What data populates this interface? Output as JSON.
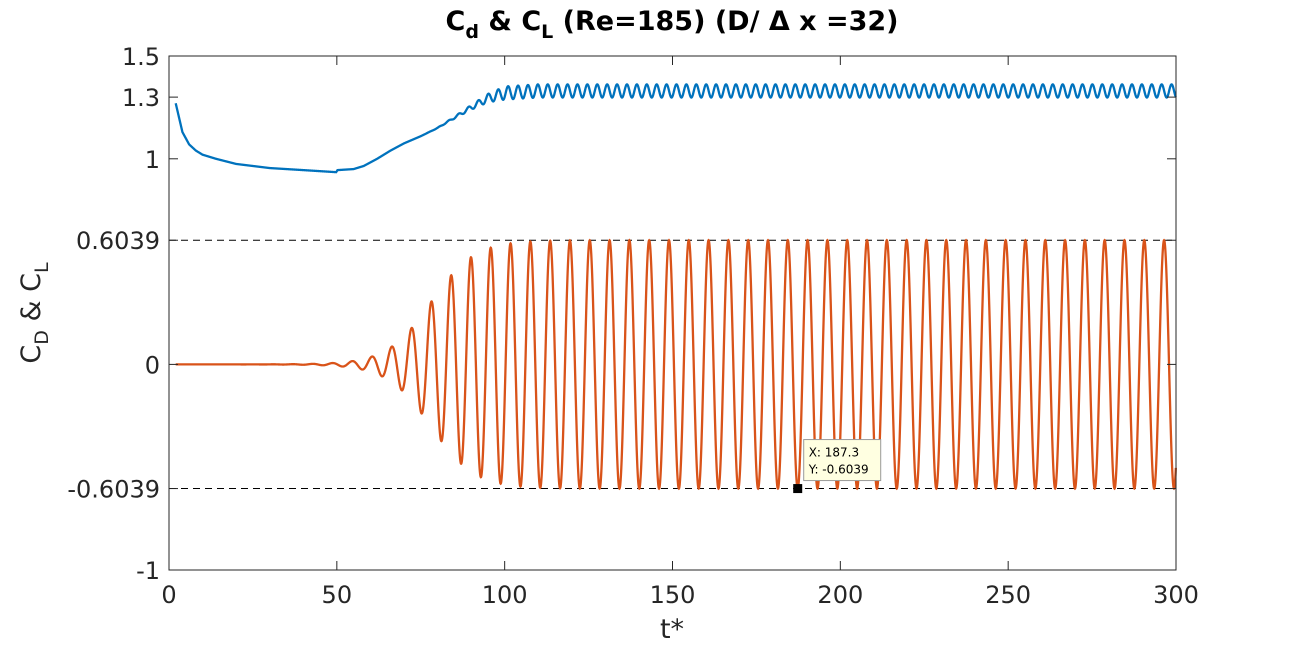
{
  "colors": {
    "cd_line": "#0072BD",
    "cl_line": "#D95319",
    "axis": "#262626",
    "dashed": "#000000",
    "tooltip_bg": "#FFFFE1",
    "tooltip_border": "#9A9A9A"
  },
  "chart_data": {
    "type": "line",
    "title": {
      "c1_main": "C",
      "c1_sub": "d",
      "amp": " & ",
      "c2_main": "C",
      "c2_sub": "L",
      "rest": " (Re=185) (D/ Δ x =32)"
    },
    "xlabel": "t*",
    "ylabel": {
      "c1_main": "C",
      "c1_sub": "D",
      "amp": " & ",
      "c2_main": "C",
      "c2_sub": "L"
    },
    "xlim": [
      0,
      300
    ],
    "ylim": [
      -1,
      1.5
    ],
    "xticks": [
      0,
      50,
      100,
      150,
      200,
      250,
      300
    ],
    "xtick_labels": [
      "0",
      "50",
      "100",
      "150",
      "200",
      "250",
      "300"
    ],
    "yticks": [
      -1,
      -0.6039,
      0,
      0.6039,
      1,
      1.3,
      1.5
    ],
    "ytick_labels": [
      "-1",
      "-0.6039",
      "0",
      "0.6039",
      "1",
      "1.3",
      "1.5"
    ],
    "reference_lines": [
      0.6039,
      -0.6039
    ],
    "grid": false,
    "series": [
      {
        "key": "cd",
        "description_points": [
          [
            2,
            1.27
          ],
          [
            4,
            1.13
          ],
          [
            6,
            1.07
          ],
          [
            8,
            1.04
          ],
          [
            10,
            1.02
          ],
          [
            14,
            1.0
          ],
          [
            20,
            0.975
          ],
          [
            30,
            0.955
          ],
          [
            40,
            0.945
          ],
          [
            49.8,
            0.935
          ],
          [
            50.2,
            0.945
          ],
          [
            55,
            0.95
          ],
          [
            58,
            0.965
          ],
          [
            62,
            1.0
          ],
          [
            66,
            1.04
          ],
          [
            70,
            1.075
          ],
          [
            75,
            1.11
          ],
          [
            80,
            1.15
          ],
          [
            85,
            1.2
          ],
          [
            90,
            1.25
          ],
          [
            95,
            1.295
          ],
          [
            100,
            1.32
          ],
          [
            110,
            1.33
          ],
          [
            300,
            1.33
          ]
        ],
        "oscillation": {
          "start_t": 75,
          "full_t": 100,
          "amplitude": 0.032,
          "period": 2.95
        }
      },
      {
        "key": "cl",
        "oscillation": {
          "start_t": 2,
          "period": 5.9,
          "phase_ref_t": 187.3,
          "amplitude": 0.6039,
          "growth_center_t": 78,
          "growth_width": 6.5
        }
      }
    ],
    "datatip": {
      "x": 187.3,
      "y": -0.6039,
      "label_x": "X: 187.3",
      "label_y": "Y: -0.6039"
    }
  }
}
